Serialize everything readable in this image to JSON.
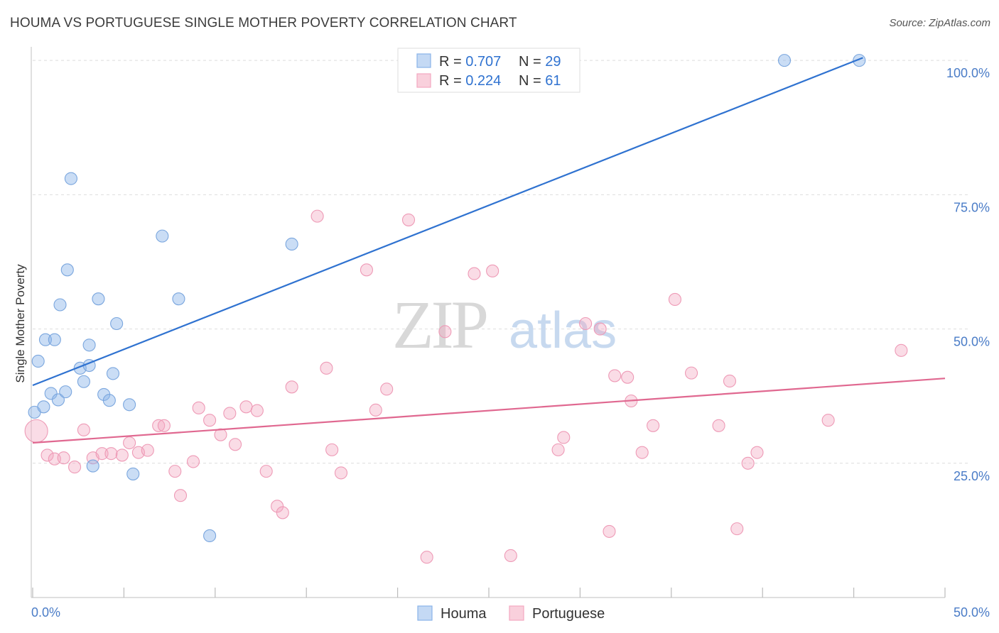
{
  "title": "HOUMA VS PORTUGUESE SINGLE MOTHER POVERTY CORRELATION CHART",
  "source": "Source: ZipAtlas.com",
  "watermark": {
    "zip": "ZIP",
    "atlas": "atlas"
  },
  "colors": {
    "houma": "#8ab4e8",
    "houma_line": "#2f72d0",
    "portuguese": "#f3a8c0",
    "portuguese_line": "#e06890",
    "tick": "#4a7cc7",
    "grid": "#dddddd"
  },
  "legend": {
    "houma": {
      "r_label": "R = ",
      "r_value": "0.707",
      "n_label": "N = ",
      "n_value": "29"
    },
    "portuguese": {
      "r_label": "R = ",
      "r_value": "0.224",
      "n_label": "N = ",
      "n_value": "61"
    }
  },
  "chart_data": {
    "type": "scatter",
    "title": "HOUMA VS PORTUGUESE SINGLE MOTHER POVERTY CORRELATION CHART",
    "xlabel": "",
    "ylabel": "Single Mother Poverty",
    "xlim": [
      0,
      50
    ],
    "ylim": [
      0,
      102
    ],
    "x_tick_labels": [
      "0.0%",
      "50.0%"
    ],
    "y_ticks": [
      25,
      50,
      75,
      100
    ],
    "y_tick_labels": [
      "25.0%",
      "50.0%",
      "75.0%",
      "100.0%"
    ],
    "grid": true,
    "legend_position": "top-center",
    "series": [
      {
        "name": "Houma",
        "color": "#8ab4e8",
        "trend": {
          "x": [
            0,
            45.5
          ],
          "y": [
            39.5,
            100.5
          ]
        },
        "points": [
          {
            "x": 0.1,
            "y": 34.5
          },
          {
            "x": 0.3,
            "y": 44
          },
          {
            "x": 0.6,
            "y": 35.5
          },
          {
            "x": 0.7,
            "y": 48
          },
          {
            "x": 1.0,
            "y": 38
          },
          {
            "x": 1.2,
            "y": 48
          },
          {
            "x": 1.4,
            "y": 36.8
          },
          {
            "x": 1.5,
            "y": 54.5
          },
          {
            "x": 1.8,
            "y": 38.3
          },
          {
            "x": 1.9,
            "y": 61
          },
          {
            "x": 2.1,
            "y": 78
          },
          {
            "x": 2.6,
            "y": 42.7
          },
          {
            "x": 2.8,
            "y": 40.2
          },
          {
            "x": 3.1,
            "y": 47
          },
          {
            "x": 3.1,
            "y": 43.2
          },
          {
            "x": 3.3,
            "y": 24.5
          },
          {
            "x": 3.6,
            "y": 55.6
          },
          {
            "x": 3.9,
            "y": 37.8
          },
          {
            "x": 4.2,
            "y": 36.7
          },
          {
            "x": 4.4,
            "y": 41.7
          },
          {
            "x": 4.6,
            "y": 51
          },
          {
            "x": 5.3,
            "y": 35.9
          },
          {
            "x": 5.5,
            "y": 23
          },
          {
            "x": 7.1,
            "y": 67.3
          },
          {
            "x": 8.0,
            "y": 55.6
          },
          {
            "x": 9.7,
            "y": 11.5
          },
          {
            "x": 14.2,
            "y": 65.8
          },
          {
            "x": 41.2,
            "y": 100
          },
          {
            "x": 45.3,
            "y": 100
          }
        ]
      },
      {
        "name": "Portuguese",
        "color": "#f3a8c0",
        "trend": {
          "x": [
            0,
            50
          ],
          "y": [
            28.8,
            40.8
          ]
        },
        "points": [
          {
            "x": 0.2,
            "y": 31,
            "big": true
          },
          {
            "x": 0.8,
            "y": 26.5
          },
          {
            "x": 1.2,
            "y": 25.8
          },
          {
            "x": 1.7,
            "y": 26
          },
          {
            "x": 2.3,
            "y": 24.3
          },
          {
            "x": 2.8,
            "y": 31.2
          },
          {
            "x": 3.3,
            "y": 26
          },
          {
            "x": 3.8,
            "y": 26.8
          },
          {
            "x": 4.3,
            "y": 26.8
          },
          {
            "x": 4.9,
            "y": 26.5
          },
          {
            "x": 5.3,
            "y": 28.8
          },
          {
            "x": 5.8,
            "y": 27
          },
          {
            "x": 6.3,
            "y": 27.4
          },
          {
            "x": 6.9,
            "y": 32
          },
          {
            "x": 7.2,
            "y": 32
          },
          {
            "x": 7.8,
            "y": 23.5
          },
          {
            "x": 8.1,
            "y": 19
          },
          {
            "x": 8.8,
            "y": 25.3
          },
          {
            "x": 9.1,
            "y": 35.3
          },
          {
            "x": 9.7,
            "y": 33
          },
          {
            "x": 10.3,
            "y": 30.3
          },
          {
            "x": 10.8,
            "y": 34.3
          },
          {
            "x": 11.1,
            "y": 28.5
          },
          {
            "x": 11.7,
            "y": 35.5
          },
          {
            "x": 12.3,
            "y": 34.8
          },
          {
            "x": 12.8,
            "y": 23.5
          },
          {
            "x": 13.4,
            "y": 17
          },
          {
            "x": 13.7,
            "y": 15.8
          },
          {
            "x": 14.2,
            "y": 39.2
          },
          {
            "x": 15.6,
            "y": 71
          },
          {
            "x": 16.1,
            "y": 42.7
          },
          {
            "x": 16.4,
            "y": 27.5
          },
          {
            "x": 16.9,
            "y": 23.2
          },
          {
            "x": 18.3,
            "y": 61
          },
          {
            "x": 18.8,
            "y": 34.9
          },
          {
            "x": 19.4,
            "y": 38.8
          },
          {
            "x": 20.6,
            "y": 70.3
          },
          {
            "x": 21.6,
            "y": 7.5
          },
          {
            "x": 22.6,
            "y": 49.5
          },
          {
            "x": 24.2,
            "y": 60.3
          },
          {
            "x": 25.2,
            "y": 60.8
          },
          {
            "x": 26.2,
            "y": 7.8
          },
          {
            "x": 28.8,
            "y": 27.5
          },
          {
            "x": 29.1,
            "y": 29.8
          },
          {
            "x": 30.3,
            "y": 51
          },
          {
            "x": 31.1,
            "y": 50
          },
          {
            "x": 31.6,
            "y": 12.3
          },
          {
            "x": 31.9,
            "y": 41.3
          },
          {
            "x": 32.6,
            "y": 41
          },
          {
            "x": 32.8,
            "y": 36.6
          },
          {
            "x": 33.4,
            "y": 27
          },
          {
            "x": 34.0,
            "y": 32
          },
          {
            "x": 35.2,
            "y": 55.5
          },
          {
            "x": 36.1,
            "y": 41.8
          },
          {
            "x": 37.6,
            "y": 32
          },
          {
            "x": 38.2,
            "y": 40.3
          },
          {
            "x": 38.6,
            "y": 12.8
          },
          {
            "x": 39.2,
            "y": 25
          },
          {
            "x": 39.7,
            "y": 27
          },
          {
            "x": 43.6,
            "y": 33
          },
          {
            "x": 47.6,
            "y": 46
          }
        ]
      }
    ]
  }
}
